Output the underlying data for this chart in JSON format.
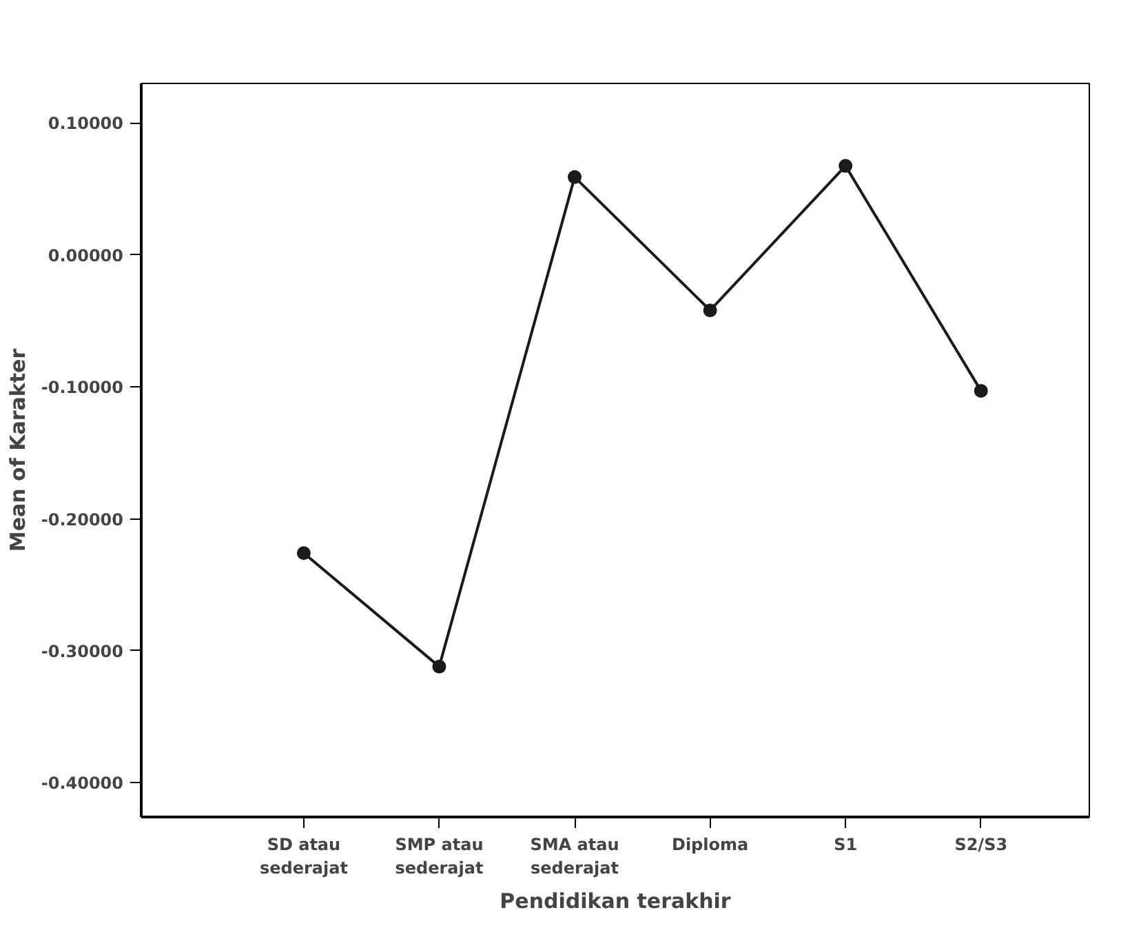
{
  "chart_data": {
    "type": "line",
    "xlabel": "Pendidikan terakhir",
    "ylabel": "Mean of Karakter",
    "categories": [
      "SD atau sederajat",
      "SMP atau sederajat",
      "SMA atau sederajat",
      "Diploma",
      "S1",
      "S2/S3"
    ],
    "series": [
      {
        "color": "#1a1a1a",
        "values": [
          -0.226,
          -0.312,
          0.059,
          -0.042,
          0.0675,
          -0.103
        ]
      }
    ],
    "ylim": [
      -0.426,
      0.13
    ],
    "yticks": [
      {
        "value": 0.1,
        "label": "0.10000"
      },
      {
        "value": 0,
        "label": "0.00000"
      },
      {
        "value": -0.1,
        "label": "-0.10000"
      },
      {
        "value": -0.2,
        "label": "-0.20000"
      },
      {
        "value": -0.3,
        "label": "-0.30000"
      },
      {
        "value": -0.4,
        "label": "-0.40000"
      }
    ],
    "grid": false,
    "marker": "circle",
    "line_style": "solid"
  }
}
